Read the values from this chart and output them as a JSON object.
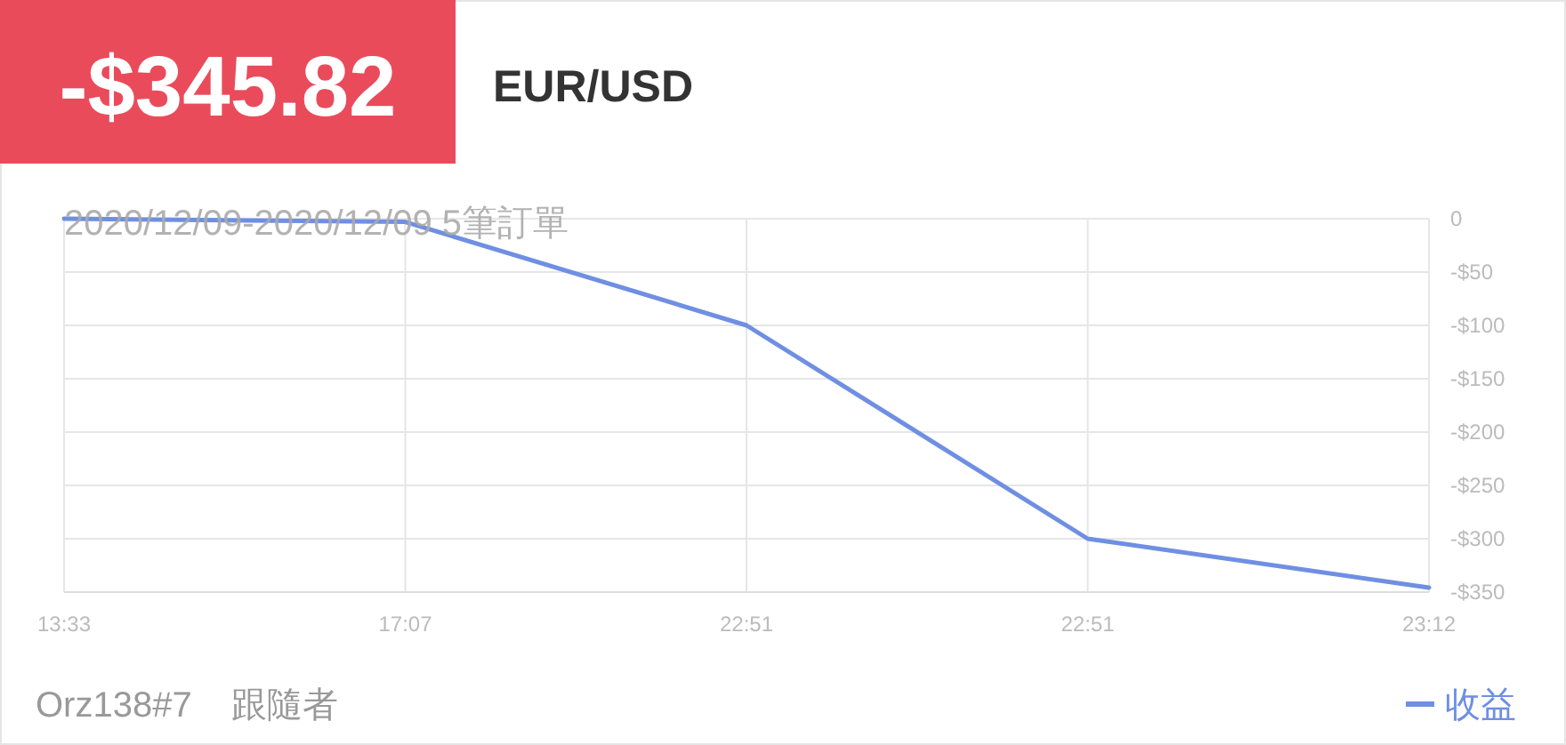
{
  "chart_data": {
    "type": "line",
    "title": "-$345.82",
    "subtitle": "EUR/USD",
    "categories": [
      "13:33",
      "17:07",
      "22:51",
      "22:51",
      "23:12"
    ],
    "series": [
      {
        "name": "收益",
        "color": "#6f8fe3",
        "values": [
          0,
          -3,
          -100,
          -300,
          -345.82
        ]
      }
    ],
    "ylim": [
      -350,
      0
    ],
    "yticks": [
      {
        "value": 0,
        "label": "0"
      },
      {
        "value": -50,
        "label": "-$50"
      },
      {
        "value": -100,
        "label": "-$100"
      },
      {
        "value": -150,
        "label": "-$150"
      },
      {
        "value": -200,
        "label": "-$200"
      },
      {
        "value": -250,
        "label": "-$250"
      },
      {
        "value": -300,
        "label": "-$300"
      },
      {
        "value": -350,
        "label": "-$350"
      }
    ],
    "grid": true,
    "legend": "bottom right",
    "annotations": [
      "2020/12/09-2020/12/09 5筆訂單",
      "Orz138#7",
      "跟隨者"
    ]
  }
}
